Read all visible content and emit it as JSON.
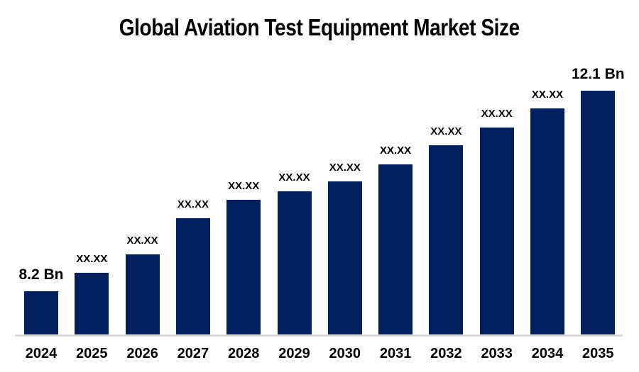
{
  "chart_data": {
    "type": "bar",
    "title": "Global Aviation Test Equipment Market Size",
    "categories": [
      "2024",
      "2025",
      "2026",
      "2027",
      "2028",
      "2029",
      "2030",
      "2031",
      "2032",
      "2033",
      "2034",
      "2035"
    ],
    "bar_labels": [
      "8.2 Bn",
      "XX.XX",
      "XX.XX",
      "XX.XX",
      "XX.XX",
      "XX.XX",
      "XX.XX",
      "XX.XX",
      "XX.XX",
      "XX.XX",
      "XX.XX",
      "12.1 Bn"
    ],
    "values_estimated_bn": [
      8.2,
      8.56,
      8.92,
      9.62,
      9.98,
      10.15,
      10.33,
      10.67,
      11.04,
      11.39,
      11.75,
      12.1
    ],
    "known_values": {
      "2024": "8.2 Bn",
      "2035": "12.1 Bn"
    },
    "unit": "Bn",
    "xlabel": "",
    "ylabel": "",
    "ylim": [
      7.36,
      12.1
    ],
    "y_axis_visible": false,
    "gridlines": false,
    "legend": "none",
    "colors": {
      "bar": "#002060",
      "axis_line": "#d9d9d9",
      "text": "#000000",
      "background": "#ffffff"
    }
  }
}
